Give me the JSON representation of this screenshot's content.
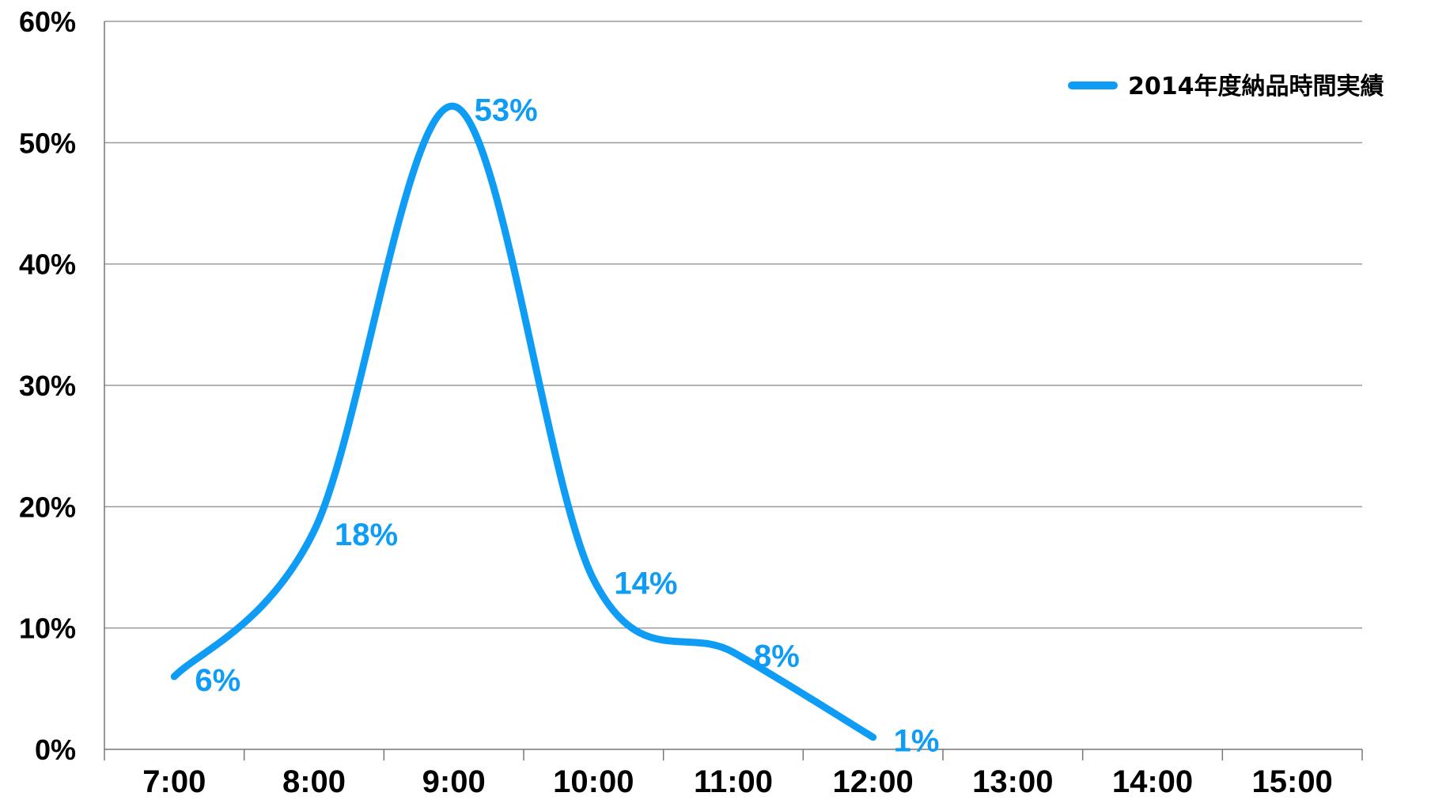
{
  "chart_data": {
    "type": "line",
    "categories": [
      "7:00",
      "8:00",
      "9:00",
      "10:00",
      "11:00",
      "12:00",
      "13:00",
      "14:00",
      "15:00"
    ],
    "series": [
      {
        "name": "2014年度納品時間実績",
        "values": [
          6,
          18,
          53,
          14,
          8,
          1,
          null,
          null,
          null
        ],
        "data_labels": [
          "6%",
          "18%",
          "53%",
          "14%",
          "8%",
          "1%"
        ],
        "smooth": true
      }
    ],
    "y_ticks": [
      "0%",
      "10%",
      "20%",
      "30%",
      "40%",
      "50%",
      "60%"
    ],
    "ylim": [
      0,
      60
    ],
    "grid": "horizontal",
    "legend": "top-right",
    "colors": {
      "series": "#0f9cf5",
      "grid": "#999999",
      "axis": "#777777"
    }
  }
}
